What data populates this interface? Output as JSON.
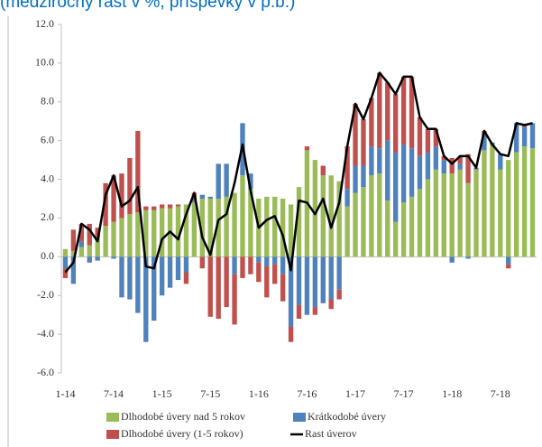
{
  "chart_data": {
    "type": "stacked-bar-line",
    "title": "(medziročný rast v %, príspevky v p.b.)",
    "categories": [
      "1-14",
      null,
      null,
      null,
      null,
      null,
      "7-14",
      null,
      null,
      null,
      null,
      null,
      "1-15",
      null,
      null,
      null,
      null,
      null,
      "7-15",
      null,
      null,
      null,
      null,
      null,
      "1-16",
      null,
      null,
      null,
      null,
      null,
      "7-16",
      null,
      null,
      null,
      null,
      null,
      "1-17",
      null,
      null,
      null,
      null,
      null,
      "7-17",
      null,
      null,
      null,
      null,
      null,
      "1-18",
      null,
      null,
      null,
      null,
      null,
      "7-18",
      null,
      null,
      null,
      null
    ],
    "series": [
      {
        "name": "Dlhodobé úvery nad 5 rokov",
        "color": "#9bbb59",
        "kind": "bar",
        "values": [
          0.4,
          0.3,
          0.5,
          0.6,
          1.0,
          1.6,
          1.8,
          2.0,
          2.2,
          2.3,
          2.4,
          2.4,
          2.5,
          2.5,
          2.6,
          2.7,
          2.8,
          3.0,
          3.0,
          3.0,
          3.1,
          3.3,
          4.2,
          3.5,
          3.0,
          3.1,
          3.1,
          3.0,
          2.7,
          3.6,
          5.5,
          5.0,
          4.2,
          4.2,
          3.9,
          2.6,
          3.3,
          3.6,
          4.2,
          4.3,
          2.9,
          1.8,
          2.8,
          3.1,
          3.5,
          4.0,
          4.5,
          4.3,
          4.3,
          4.5,
          3.8,
          4.5,
          5.5,
          5.8,
          4.5,
          5.0,
          5.4,
          5.7,
          5.6
        ]
      },
      {
        "name": "Krátkodobé úvery",
        "color": "#4f81bd",
        "kind": "bar",
        "values": [
          -0.6,
          -1.4,
          0.3,
          -0.3,
          -0.2,
          0,
          -0.1,
          -2.1,
          -2.2,
          -2.9,
          -4.4,
          -3.3,
          -2.0,
          -1.6,
          -1.2,
          -0.8,
          0.1,
          0.2,
          0.1,
          1.8,
          1.7,
          -0.9,
          2.7,
          0.8,
          -0.3,
          -0.5,
          -0.4,
          -0.9,
          -3.6,
          -2.5,
          -3.0,
          -2.6,
          -2.4,
          -2.2,
          -1.7,
          0.9,
          1.4,
          1.1,
          1.5,
          1.3,
          3.1,
          3.6,
          3.0,
          2.5,
          1.7,
          1.4,
          1.2,
          0.7,
          -0.3,
          0.3,
          -0.1,
          0.1,
          0.8,
          0.1,
          0.8,
          -0.4,
          1.5,
          1.0,
          1.3
        ]
      },
      {
        "name": "Dlhodobé úvery (1-5 rokov)",
        "color": "#c0504d",
        "kind": "bar",
        "values": [
          -0.5,
          1.1,
          0.9,
          1.1,
          0.5,
          2.2,
          2.4,
          2.3,
          2.9,
          4.2,
          0.2,
          0.2,
          0.2,
          0.2,
          0.1,
          -0.6,
          0.4,
          -0.6,
          -3.1,
          -3.2,
          -2.6,
          -2.6,
          -1.1,
          -0.9,
          -1.0,
          -1.6,
          -1.0,
          -1.4,
          -0.8,
          -0.7,
          0.2,
          -0.4,
          0.5,
          -0.5,
          -0.5,
          2.2,
          3.2,
          2.4,
          2.5,
          3.9,
          3.0,
          3.0,
          3.5,
          3.7,
          2.0,
          1.2,
          0.9,
          0.2,
          0.8,
          0.4,
          1.5,
          0.0,
          0.2,
          0.0,
          0.0,
          -0.2,
          0.0,
          0.1,
          0.0
        ]
      },
      {
        "name": "Rast úverov",
        "color": "#000000",
        "kind": "line",
        "values": [
          -0.8,
          -0.3,
          1.7,
          1.4,
          0.8,
          3.2,
          4.2,
          2.6,
          2.9,
          3.6,
          -0.5,
          -0.6,
          0.9,
          1.3,
          0.9,
          2.2,
          3.3,
          1.0,
          0.1,
          1.9,
          2.2,
          3.8,
          5.8,
          3.4,
          1.5,
          1.9,
          2.1,
          1.1,
          -0.7,
          2.9,
          2.8,
          2.2,
          3.0,
          1.5,
          2.8,
          5.7,
          7.9,
          7.1,
          8.2,
          9.5,
          9.0,
          8.4,
          9.3,
          9.3,
          7.2,
          6.6,
          6.6,
          5.2,
          4.8,
          5.2,
          5.2,
          4.6,
          6.5,
          5.8,
          5.3,
          5.2,
          6.9,
          6.8,
          6.9
        ]
      }
    ],
    "ylim": [
      -6,
      12
    ],
    "yticks": [
      {
        "value": -6,
        "label": "-6.0"
      },
      {
        "value": -4,
        "label": "-4.0"
      },
      {
        "value": -2,
        "label": "-2.0"
      },
      {
        "value": 0,
        "label": "0.0"
      },
      {
        "value": 2,
        "label": "2.0"
      },
      {
        "value": 4,
        "label": "4.0"
      },
      {
        "value": 6,
        "label": "6.0"
      },
      {
        "value": 8,
        "label": "8.0"
      },
      {
        "value": 10,
        "label": "10.0"
      },
      {
        "value": 12,
        "label": "12.0"
      }
    ],
    "grid": false,
    "legend": "bottom"
  }
}
